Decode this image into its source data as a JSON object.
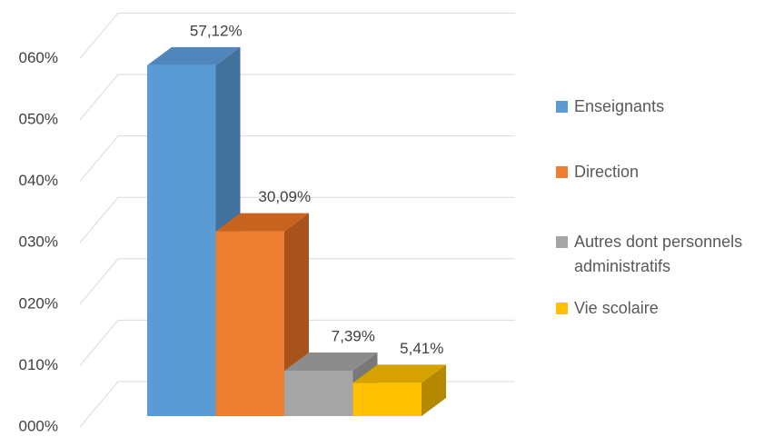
{
  "chart_data": {
    "type": "bar3d",
    "series": [
      {
        "name": "Enseignants",
        "color": "#5b9bd5",
        "side": "#41719c",
        "top": "#4f86bb",
        "values": [
          57.12
        ],
        "value_labels": [
          "57,12%"
        ]
      },
      {
        "name": "Direction",
        "color": "#ed7d31",
        "side": "#a9531c",
        "top": "#c8621f",
        "values": [
          30.09
        ],
        "value_labels": [
          "30,09%"
        ]
      },
      {
        "name": "Autres dont personnels administratifs",
        "color": "#a5a5a5",
        "side": "#787878",
        "top": "#8c8c8c",
        "values": [
          7.39
        ],
        "value_labels": [
          "7,39%"
        ]
      },
      {
        "name": "Vie scolaire",
        "color": "#ffc000",
        "side": "#b48800",
        "top": "#d6a200",
        "values": [
          5.41
        ],
        "value_labels": [
          "5,41%"
        ]
      }
    ],
    "ylim": [
      0,
      60
    ],
    "yticks": [
      {
        "value": 0,
        "label": "000%"
      },
      {
        "value": 10,
        "label": "010%"
      },
      {
        "value": 20,
        "label": "020%"
      },
      {
        "value": 30,
        "label": "030%"
      },
      {
        "value": 40,
        "label": "040%"
      },
      {
        "value": 50,
        "label": "050%"
      },
      {
        "value": 60,
        "label": "060%"
      }
    ],
    "grid": true,
    "legend": "right"
  }
}
